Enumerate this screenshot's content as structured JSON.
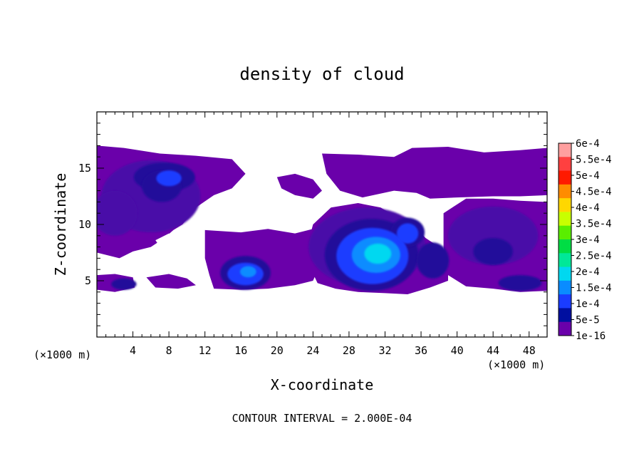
{
  "chart_data": {
    "type": "heatmap",
    "title": "density of cloud",
    "xlabel": "X-coordinate",
    "ylabel": "Z-coordinate",
    "x_unit": "(×1000 m)",
    "y_unit": "(×1000 m)",
    "xlim": [
      0,
      50
    ],
    "ylim": [
      0,
      20
    ],
    "x_ticks": [
      4,
      8,
      12,
      16,
      20,
      24,
      28,
      32,
      36,
      40,
      44,
      48
    ],
    "y_ticks": [
      5,
      10,
      15
    ],
    "footer": "CONTOUR INTERVAL = 2.000E-04",
    "colorbar": {
      "labels": [
        "6e-4",
        "5.5e-4",
        "5e-4",
        "4.5e-4",
        "4e-4",
        "3.5e-4",
        "3e-4",
        "2.5e-4",
        "2e-4",
        "1.5e-4",
        "1e-4",
        "5e-5",
        "1e-16"
      ],
      "colors": [
        "#ff9f9f",
        "#ff4040",
        "#ff1a00",
        "#ff8c00",
        "#ffd700",
        "#c8ff00",
        "#5aee00",
        "#00dd44",
        "#00e898",
        "#00d8f0",
        "#0a8cff",
        "#1a3cff",
        "#000fa0",
        "#6a00aa"
      ]
    },
    "cloud_regions": [
      {
        "name": "upper layer west",
        "x": [
          0,
          17
        ],
        "z": [
          12.5,
          17
        ]
      },
      {
        "name": "upper layer east",
        "x": [
          25,
          50
        ],
        "z": [
          12.5,
          17
        ]
      },
      {
        "name": "west column",
        "x": [
          0,
          8
        ],
        "z": [
          8,
          16
        ]
      },
      {
        "name": "upper-left core",
        "x": [
          4,
          11
        ],
        "z": [
          13,
          16
        ]
      },
      {
        "name": "mid layer west",
        "x": [
          12,
          24
        ],
        "z": [
          4,
          9
        ]
      },
      {
        "name": "main convective core",
        "x": [
          24,
          39
        ],
        "z": [
          4,
          12
        ]
      },
      {
        "name": "mid layer east",
        "x": [
          38,
          50
        ],
        "z": [
          4,
          12
        ]
      },
      {
        "name": "low layer west",
        "x": [
          0,
          4
        ],
        "z": [
          4,
          5.5
        ]
      }
    ],
    "peak_value_approx": "1.5e-4 to 2e-4",
    "peak_location_approx": {
      "x": 30,
      "z": 7.5
    }
  }
}
